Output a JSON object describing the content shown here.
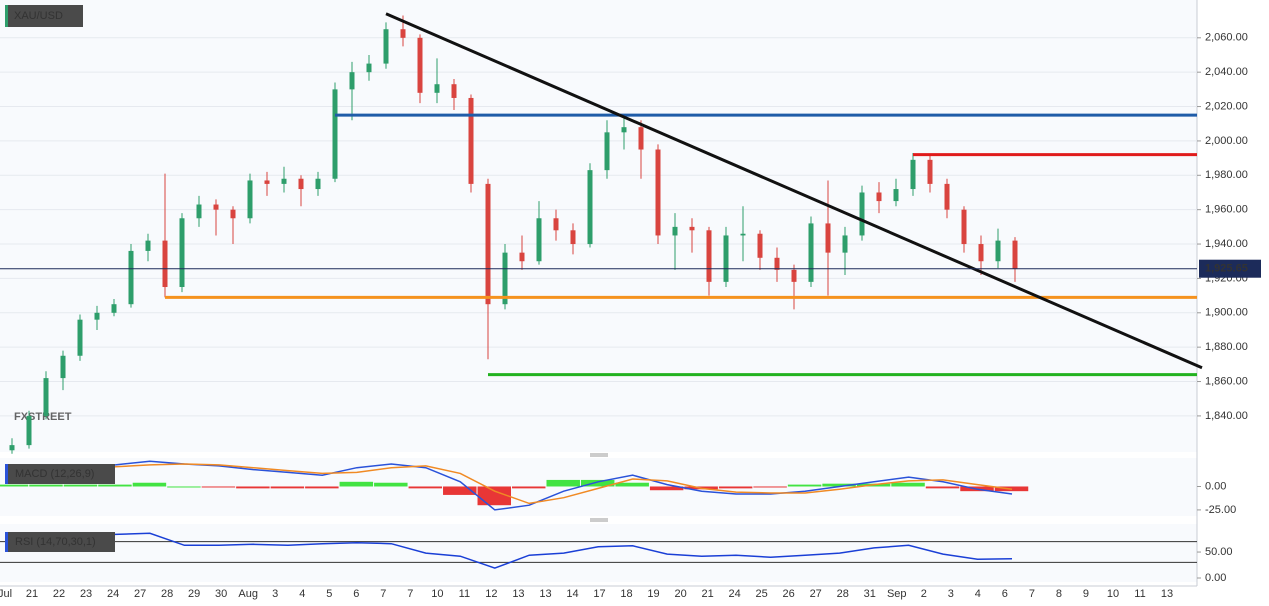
{
  "chart_data": [
    {
      "type": "candlestick",
      "title": "XAU/USD",
      "watermark": "FXSTREET",
      "categories": [
        "Jul",
        "21",
        "22",
        "23",
        "24",
        "27",
        "28",
        "29",
        "30",
        "Aug",
        "3",
        "4",
        "5",
        "6",
        "7",
        "7",
        "10",
        "11",
        "12",
        "13",
        "13",
        "14",
        "17",
        "18",
        "19",
        "20",
        "21",
        "24",
        "25",
        "26",
        "27",
        "28",
        "31",
        "Sep",
        "2",
        "3",
        "4",
        "6",
        "7",
        "8",
        "9",
        "10",
        "11",
        "13"
      ],
      "up_color": "#2e9e6b",
      "down_color": "#d9443f",
      "candles": [
        [
          1820,
          1827,
          1818,
          1823
        ],
        [
          1823,
          1843,
          1821,
          1840
        ],
        [
          1840,
          1866,
          1838,
          1862
        ],
        [
          1862,
          1878,
          1855,
          1875
        ],
        [
          1875,
          1899,
          1872,
          1896
        ],
        [
          1896,
          1904,
          1890,
          1900
        ],
        [
          1900,
          1908,
          1898,
          1905
        ],
        [
          1905,
          1940,
          1903,
          1936
        ],
        [
          1936,
          1946,
          1930,
          1942
        ],
        [
          1942,
          1981,
          1909,
          1915
        ],
        [
          1915,
          1958,
          1912,
          1955
        ],
        [
          1955,
          1968,
          1950,
          1963
        ],
        [
          1963,
          1966,
          1945,
          1960
        ],
        [
          1960,
          1962,
          1940,
          1955
        ],
        [
          1955,
          1981,
          1952,
          1977
        ],
        [
          1977,
          1982,
          1968,
          1975
        ],
        [
          1975,
          1985,
          1970,
          1978
        ],
        [
          1978,
          1980,
          1962,
          1972
        ],
        [
          1972,
          1982,
          1968,
          1978
        ],
        [
          1978,
          2034,
          1976,
          2030
        ],
        [
          2030,
          2046,
          2012,
          2040
        ],
        [
          2040,
          2050,
          2035,
          2045
        ],
        [
          2045,
          2069,
          2042,
          2065
        ],
        [
          2065,
          2073,
          2055,
          2060
        ],
        [
          2060,
          2062,
          2022,
          2028
        ],
        [
          2028,
          2048,
          2022,
          2033
        ],
        [
          2033,
          2036,
          2018,
          2025
        ],
        [
          2025,
          2027,
          1970,
          1975
        ],
        [
          1975,
          1978,
          1873,
          1905
        ],
        [
          1905,
          1940,
          1902,
          1935
        ],
        [
          1935,
          1945,
          1925,
          1930
        ],
        [
          1930,
          1965,
          1928,
          1955
        ],
        [
          1955,
          1960,
          1942,
          1948
        ],
        [
          1948,
          1952,
          1934,
          1940
        ],
        [
          1940,
          1987,
          1938,
          1983
        ],
        [
          1983,
          2012,
          1978,
          2005
        ],
        [
          2005,
          2015,
          1995,
          2008
        ],
        [
          2008,
          2012,
          1978,
          1995
        ],
        [
          1995,
          1998,
          1940,
          1945
        ],
        [
          1945,
          1958,
          1925,
          1950
        ],
        [
          1950,
          1955,
          1935,
          1948
        ],
        [
          1948,
          1950,
          1910,
          1918
        ],
        [
          1918,
          1950,
          1915,
          1945
        ],
        [
          1945,
          1962,
          1930,
          1946
        ],
        [
          1946,
          1948,
          1925,
          1932
        ],
        [
          1932,
          1938,
          1918,
          1925
        ],
        [
          1925,
          1928,
          1902,
          1918
        ],
        [
          1918,
          1956,
          1915,
          1952
        ],
        [
          1952,
          1977,
          1910,
          1935
        ],
        [
          1935,
          1950,
          1922,
          1945
        ],
        [
          1945,
          1974,
          1942,
          1970
        ],
        [
          1970,
          1976,
          1958,
          1965
        ],
        [
          1965,
          1978,
          1962,
          1972
        ],
        [
          1972,
          1993,
          1968,
          1989
        ],
        [
          1989,
          1992,
          1970,
          1975
        ],
        [
          1975,
          1978,
          1955,
          1960
        ],
        [
          1960,
          1962,
          1935,
          1940
        ],
        [
          1940,
          1945,
          1922,
          1930
        ],
        [
          1930,
          1949,
          1926,
          1942
        ],
        [
          1942,
          1944,
          1918,
          1925.65
        ]
      ],
      "ylim": [
        1819,
        2082
      ],
      "yticks": [
        {
          "value": 1840,
          "label": "1,840.00"
        },
        {
          "value": 1860,
          "label": "1,860.00"
        },
        {
          "value": 1880,
          "label": "1,880.00"
        },
        {
          "value": 1900,
          "label": "1,900.00"
        },
        {
          "value": 1920,
          "label": "1,920.00"
        },
        {
          "value": 1940,
          "label": "1,940.00"
        },
        {
          "value": 1960,
          "label": "1,960.00"
        },
        {
          "value": 1980,
          "label": "1,980.00"
        },
        {
          "value": 2000,
          "label": "2,000.00"
        },
        {
          "value": 2020,
          "label": "2,020.00"
        },
        {
          "value": 2040,
          "label": "2,040.00"
        },
        {
          "value": 2060,
          "label": "2,060.00"
        }
      ],
      "levels": [
        {
          "value": 2015,
          "start": 19,
          "color": "#1f5ca8"
        },
        {
          "value": 1992,
          "start": 53,
          "color": "#e01b1b"
        },
        {
          "value": 1909,
          "start": 9,
          "color": "#f5921e"
        },
        {
          "value": 1864,
          "start": 28,
          "color": "#22b21f"
        }
      ],
      "trendline": {
        "from": [
          22,
          2074
        ],
        "to": [
          70,
          1868
        ],
        "color": "#111111"
      },
      "current_price": {
        "value": 1925.65,
        "label": "1,925.65",
        "color": "#1c2b5a"
      },
      "grid": true
    },
    {
      "type": "macd",
      "title": "MACD (12,26,9)",
      "series": [
        {
          "color": "#2a52d9",
          "values": [
            20,
            21,
            22,
            23,
            27,
            24,
            22,
            18,
            15,
            12,
            20,
            24,
            20,
            5,
            -25,
            -20,
            -5,
            5,
            12,
            2,
            -5,
            -8,
            -8,
            -5,
            0,
            5,
            10,
            5,
            -3,
            -8
          ]
        },
        {
          "color": "#f08a24",
          "values": [
            18,
            19,
            20,
            21,
            23,
            24,
            23,
            20,
            17,
            14,
            15,
            20,
            22,
            14,
            -5,
            -18,
            -12,
            -2,
            8,
            6,
            -2,
            -6,
            -7,
            -7,
            -3,
            2,
            6,
            7,
            2,
            -3
          ]
        }
      ],
      "histogram": {
        "up_color": "#2ee02e",
        "down_color": "#e62020",
        "values": [
          2,
          2,
          2,
          2,
          4,
          0,
          -1,
          -2,
          -2,
          -2,
          5,
          4,
          -2,
          -9,
          -20,
          -2,
          7,
          7,
          4,
          -4,
          -3,
          -2,
          -1,
          2,
          3,
          3,
          4,
          -2,
          -5,
          -5
        ]
      },
      "ylim": [
        -31.5,
        30.4
      ],
      "yticks": [
        {
          "value": 0,
          "label": "0.00"
        },
        {
          "value": -25,
          "label": "-25.00"
        }
      ]
    },
    {
      "type": "rsi",
      "title": "RSI (14,70,30,1)",
      "series": [
        {
          "color": "#1a3fd6",
          "values": [
            81,
            80,
            82,
            84,
            86,
            63,
            63,
            65,
            63,
            66,
            68,
            66,
            48,
            42,
            19,
            44,
            48,
            60,
            62,
            46,
            42,
            44,
            40,
            44,
            48,
            58,
            63,
            46,
            36,
            37
          ]
        }
      ],
      "levels": [
        70,
        30
      ],
      "ylim": [
        -7.7,
        104
      ],
      "yticks": [
        {
          "value": 0,
          "label": "0.00"
        },
        {
          "value": 50,
          "label": "50.00"
        }
      ]
    }
  ]
}
